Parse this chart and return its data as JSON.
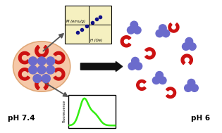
{
  "bg_color": "#ffffff",
  "nanoparticle_color": "#6b6bcc",
  "shell_color": "#cc1111",
  "cell_color": "#f5c8a8",
  "cell_edge_color": "#e0a878",
  "plot_bg_color": "#f5f0c0",
  "fluorescence_color": "#33ee11",
  "text_ph74": "pH 7.4",
  "text_ph6": "pH 6",
  "text_M": "M (emu/g)",
  "text_H": "H (Oe)",
  "text_fluor": "Fluorescence",
  "dot_color": "#111188",
  "arrow_gray": "#555555",
  "arrow_black": "#111111"
}
